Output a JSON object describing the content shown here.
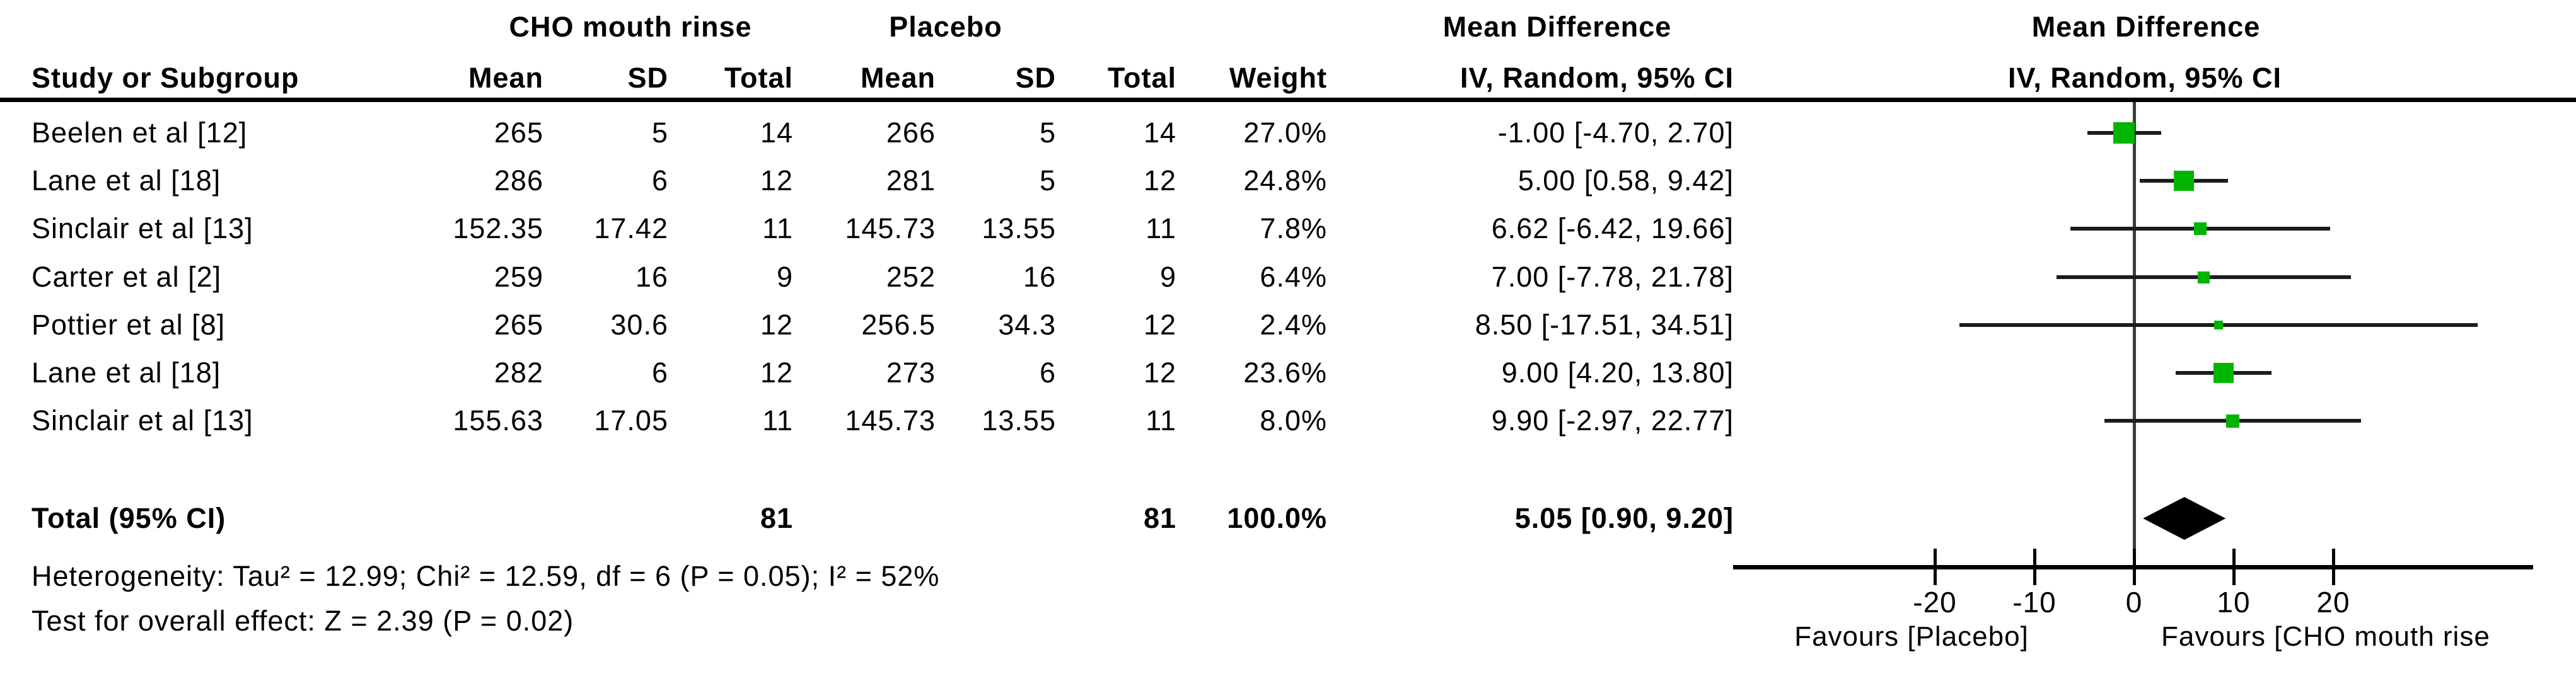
{
  "figure": {
    "group_headers": {
      "cho": "CHO mouth rinse",
      "placebo": "Placebo",
      "md_left": "Mean Difference",
      "md_right": "Mean Difference"
    },
    "column_headers": {
      "study": "Study or Subgroup",
      "mean1": "Mean",
      "sd1": "SD",
      "total1": "Total",
      "mean2": "Mean",
      "sd2": "SD",
      "total2": "Total",
      "weight": "Weight",
      "iv_ci_left": "IV, Random, 95% CI",
      "iv_ci_right": "IV, Random, 95% CI"
    },
    "studies": [
      {
        "label": "Beelen et al [12]",
        "cho_mean": "265",
        "cho_sd": "5",
        "cho_total": "14",
        "pla_mean": "266",
        "pla_sd": "5",
        "pla_total": "14",
        "weight": "27.0%",
        "ci_text": "-1.00 [-4.70, 2.70]"
      },
      {
        "label": "Lane et al [18]",
        "cho_mean": "286",
        "cho_sd": "6",
        "cho_total": "12",
        "pla_mean": "281",
        "pla_sd": "5",
        "pla_total": "12",
        "weight": "24.8%",
        "ci_text": "5.00 [0.58, 9.42]"
      },
      {
        "label": "Sinclair et al [13]",
        "cho_mean": "152.35",
        "cho_sd": "17.42",
        "cho_total": "11",
        "pla_mean": "145.73",
        "pla_sd": "13.55",
        "pla_total": "11",
        "weight": "7.8%",
        "ci_text": "6.62 [-6.42, 19.66]"
      },
      {
        "label": "Carter et al [2]",
        "cho_mean": "259",
        "cho_sd": "16",
        "cho_total": "9",
        "pla_mean": "252",
        "pla_sd": "16",
        "pla_total": "9",
        "weight": "6.4%",
        "ci_text": "7.00 [-7.78, 21.78]"
      },
      {
        "label": "Pottier et al [8]",
        "cho_mean": "265",
        "cho_sd": "30.6",
        "cho_total": "12",
        "pla_mean": "256.5",
        "pla_sd": "34.3",
        "pla_total": "12",
        "weight": "2.4%",
        "ci_text": "8.50 [-17.51, 34.51]"
      },
      {
        "label": "Lane et al [18]",
        "cho_mean": "282",
        "cho_sd": "6",
        "cho_total": "12",
        "pla_mean": "273",
        "pla_sd": "6",
        "pla_total": "12",
        "weight": "23.6%",
        "ci_text": "9.00 [4.20, 13.80]"
      },
      {
        "label": "Sinclair et al [13]",
        "cho_mean": "155.63",
        "cho_sd": "17.05",
        "cho_total": "11",
        "pla_mean": "145.73",
        "pla_sd": "13.55",
        "pla_total": "11",
        "weight": "8.0%",
        "ci_text": "9.90 [-2.97, 22.77]"
      }
    ],
    "total_row": {
      "label": "Total (95% CI)",
      "cho_total": "81",
      "pla_total": "81",
      "weight": "100.0%",
      "ci_text": "5.05 [0.90, 9.20]"
    },
    "heterogeneity": "Heterogeneity: Tau² = 12.99; Chi² = 12.59, df = 6 (P = 0.05); I² = 52%",
    "overall_effect": "Test for overall effect: Z = 2.39 (P = 0.02)"
  },
  "chart_data": {
    "type": "forest",
    "effect_measure": "Mean Difference",
    "model": "IV, Random, 95% CI",
    "x_ticks": [
      -20,
      -10,
      0,
      10,
      20
    ],
    "favours_left": "Favours [Placebo]",
    "favours_right": "Favours [CHO mouth rise",
    "marker_color": "#00b400",
    "studies": [
      {
        "label": "Beelen et al [12]",
        "md": -1.0,
        "lo": -4.7,
        "hi": 2.7,
        "weight_pct": 27.0
      },
      {
        "label": "Lane et al [18]",
        "md": 5.0,
        "lo": 0.58,
        "hi": 9.42,
        "weight_pct": 24.8
      },
      {
        "label": "Sinclair et al [13]",
        "md": 6.62,
        "lo": -6.42,
        "hi": 19.66,
        "weight_pct": 7.8
      },
      {
        "label": "Carter et al [2]",
        "md": 7.0,
        "lo": -7.78,
        "hi": 21.78,
        "weight_pct": 6.4
      },
      {
        "label": "Pottier et al [8]",
        "md": 8.5,
        "lo": -17.51,
        "hi": 34.51,
        "weight_pct": 2.4
      },
      {
        "label": "Lane et al [18]",
        "md": 9.0,
        "lo": 4.2,
        "hi": 13.8,
        "weight_pct": 23.6
      },
      {
        "label": "Sinclair et al [13]",
        "md": 9.9,
        "lo": -2.97,
        "hi": 22.77,
        "weight_pct": 8.0
      }
    ],
    "total": {
      "md": 5.05,
      "lo": 0.9,
      "hi": 9.2
    }
  }
}
